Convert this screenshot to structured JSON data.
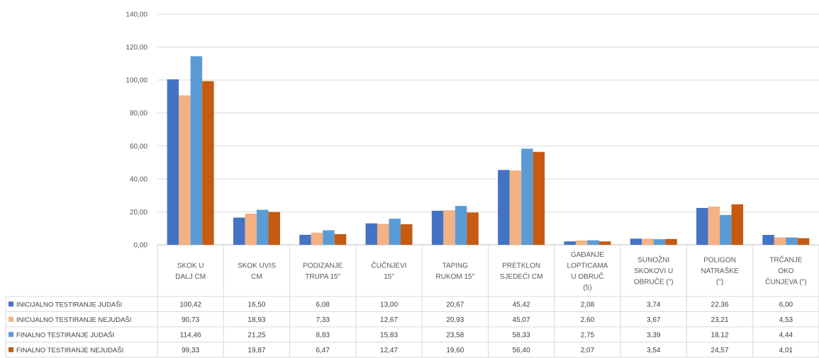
{
  "chart_data": {
    "type": "bar",
    "ylim": [
      0,
      140
    ],
    "y_ticks": [
      "0,00",
      "20,00",
      "40,00",
      "60,00",
      "80,00",
      "100,00",
      "120,00",
      "140,00"
    ],
    "grid": true,
    "legend_placement": "bottom-left data table",
    "categories": [
      [
        "SKOK U",
        "DALJ CM"
      ],
      [
        "SKOK UVIS",
        "CM"
      ],
      [
        "PODIZANJE",
        "TRUPA 15\""
      ],
      [
        "ČUČNJEVI",
        "15\""
      ],
      [
        "TAPING",
        "RUKOM 15\""
      ],
      [
        "PRETKLON",
        "SJEDEĆI CM"
      ],
      [
        "GAĐANJE",
        "LOPTICAMA",
        "U OBRUČ",
        "(5)"
      ],
      [
        "SUNOŽNI",
        "SKOKOVI U",
        "OBRUČE (\")"
      ],
      [
        "POLIGON",
        "NATRAŠKE",
        "(\")"
      ],
      [
        "TRČANJE",
        "OKO",
        "ČUNJEVA (\")"
      ]
    ],
    "series": [
      {
        "name": "INICIJALNO TESTIRANJE JUDAŠI",
        "color": "#4472C4",
        "values": [
          100.42,
          16.5,
          6.08,
          13.0,
          20.67,
          45.42,
          2.08,
          3.74,
          22.36,
          6.0
        ],
        "labels": [
          "100,42",
          "16,50",
          "6,08",
          "13,00",
          "20,67",
          "45,42",
          "2,08",
          "3,74",
          "22,36",
          "6,00"
        ]
      },
      {
        "name": "INICIJALNO TESTIRANJE NEJUDAŠI",
        "color": "#F4B183",
        "values": [
          90.73,
          18.93,
          7.33,
          12.67,
          20.93,
          45.07,
          2.6,
          3.67,
          23.21,
          4.53
        ],
        "labels": [
          "90,73",
          "18,93",
          "7,33",
          "12,67",
          "20,93",
          "45,07",
          "2,60",
          "3,67",
          "23,21",
          "4,53"
        ]
      },
      {
        "name": "FINALNO TESTIRANJE JUDAŠI",
        "color": "#5B9BD5",
        "values": [
          114.46,
          21.25,
          8.83,
          15.83,
          23.58,
          58.33,
          2.75,
          3.39,
          18.12,
          4.44
        ],
        "labels": [
          "114,46",
          "21,25",
          "8,83",
          "15,83",
          "23,58",
          "58,33",
          "2,75",
          "3,39",
          "18,12",
          "4,44"
        ]
      },
      {
        "name": "FINALNO TESTIRANJE NEJUDAŠI",
        "color": "#C55A11",
        "values": [
          99.33,
          19.87,
          6.47,
          12.47,
          19.6,
          56.4,
          2.07,
          3.54,
          24.57,
          4.01
        ],
        "labels": [
          "99,33",
          "19,87",
          "6,47",
          "12,47",
          "19,60",
          "56,40",
          "2,07",
          "3,54",
          "24,57",
          "4,01"
        ]
      }
    ]
  }
}
